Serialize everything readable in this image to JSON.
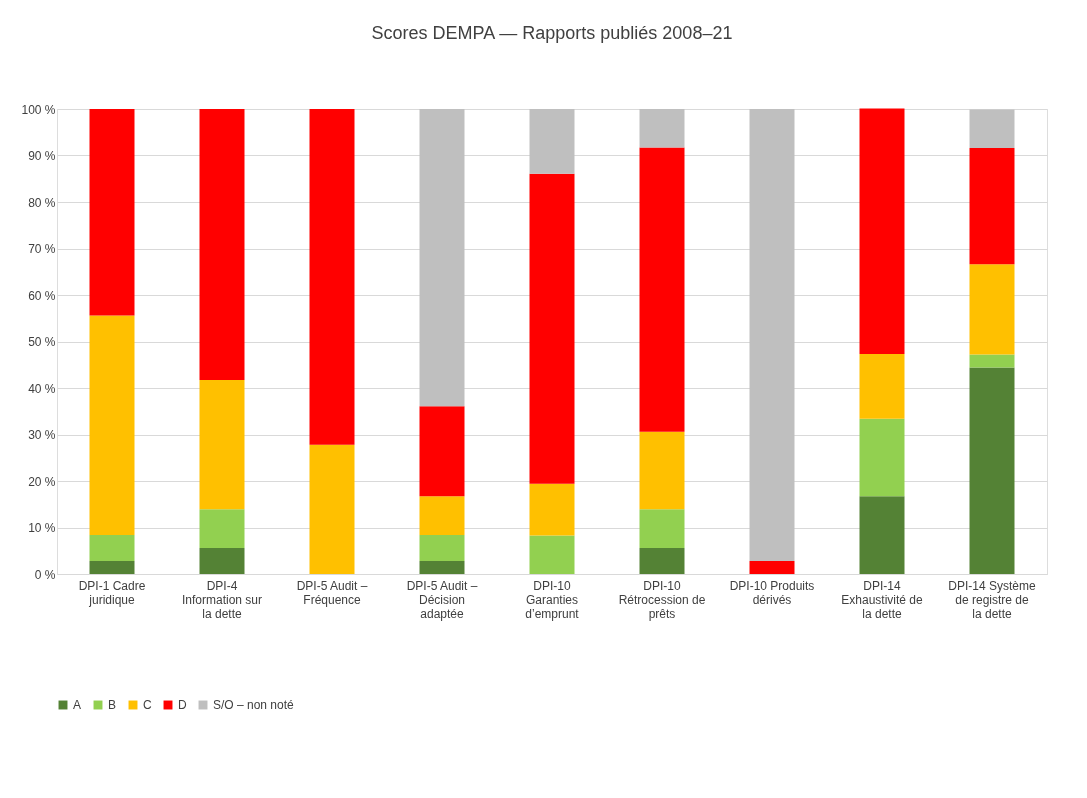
{
  "chart_data": {
    "type": "bar",
    "stacked": true,
    "title": "Scores DEMPA — Rapports publiés 2008–21",
    "categories": [
      "DPI-1 Cadre juridique",
      "DPI-4 Information sur la dette",
      "DPI-5 Audit – Fréquence",
      "DPI-5 Audit – Décision adaptée",
      "DPI-10 Garanties d’emprunt",
      "DPI-10 Rétrocession de prêts",
      "DPI-10 Produits dérivés",
      "DPI-14 Exhaustivité de la dette",
      "DPI-14 Système de registre de la dette"
    ],
    "series": [
      {
        "name": "A",
        "color": "#548235",
        "values": [
          2.8,
          5.6,
          0,
          2.8,
          0,
          5.6,
          0,
          16.7,
          44.4
        ]
      },
      {
        "name": "B",
        "color": "#92d050",
        "values": [
          5.6,
          8.3,
          0,
          5.6,
          8.3,
          8.3,
          0,
          16.7,
          2.8
        ]
      },
      {
        "name": "C",
        "color": "#ffc000",
        "values": [
          47.2,
          27.8,
          27.8,
          8.3,
          11.1,
          16.7,
          0,
          13.9,
          19.4
        ]
      },
      {
        "name": "D",
        "color": "#ff0000",
        "values": [
          44.4,
          58.3,
          72.2,
          19.4,
          66.7,
          61.1,
          2.8,
          52.8,
          25.0
        ]
      },
      {
        "name": "S/O – non noté",
        "color": "#bfbfbf",
        "values": [
          0,
          0,
          0,
          63.9,
          13.9,
          8.3,
          97.2,
          0,
          8.3
        ]
      }
    ],
    "ylim": [
      0,
      100
    ],
    "yticks": [
      {
        "value": 0,
        "label": "0 %"
      },
      {
        "value": 10,
        "label": "10 %"
      },
      {
        "value": 20,
        "label": "20 %"
      },
      {
        "value": 30,
        "label": "30 %"
      },
      {
        "value": 40,
        "label": "40 %"
      },
      {
        "value": 50,
        "label": "50 %"
      },
      {
        "value": 60,
        "label": "60 %"
      },
      {
        "value": 70,
        "label": "70 %"
      },
      {
        "value": 80,
        "label": "80 %"
      },
      {
        "value": 90,
        "label": "90 %"
      },
      {
        "value": 100,
        "label": "100 %"
      }
    ],
    "grid": "y",
    "legend": "bottom"
  }
}
